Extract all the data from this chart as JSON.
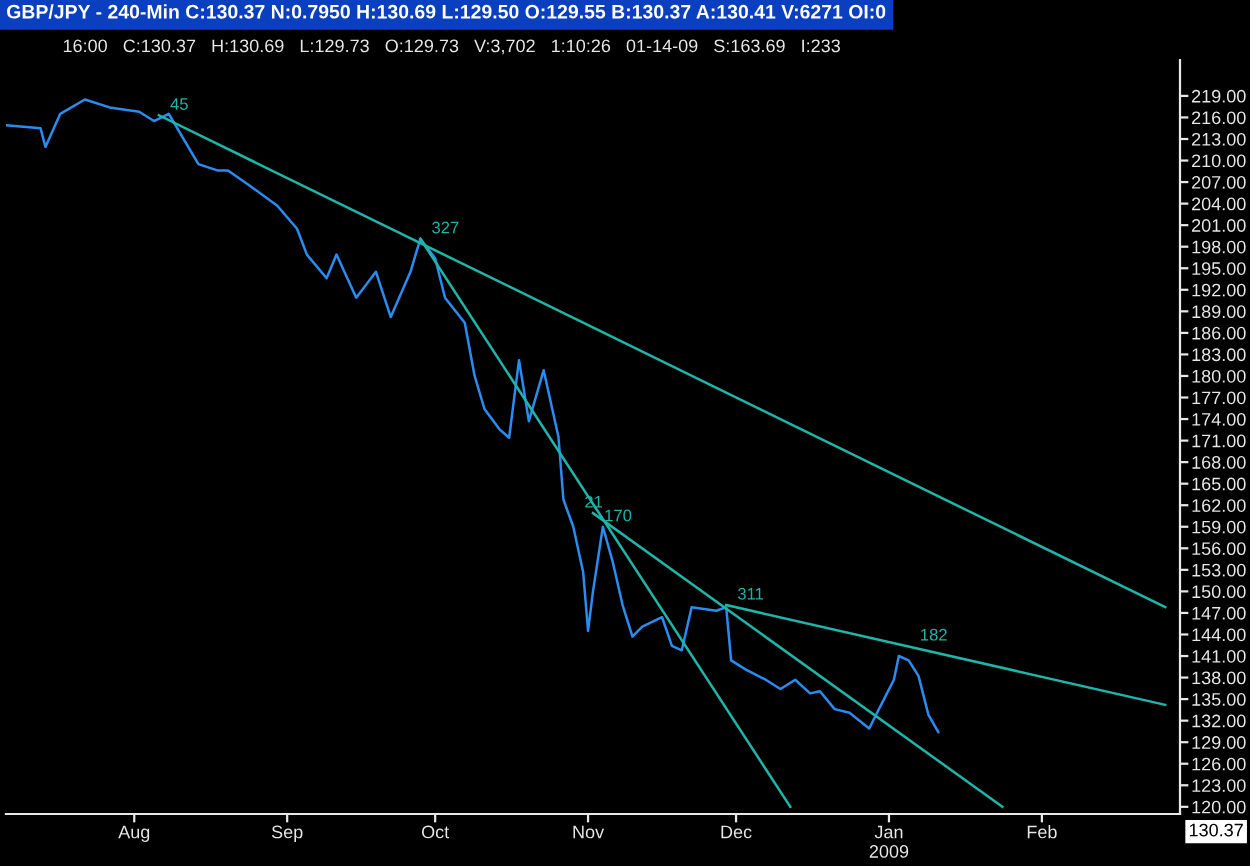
{
  "chart_data": {
    "type": "line",
    "title": "GBP/JPY - 240-Min C:130.37 N:0.7950 H:130.69 L:129.50 O:129.55 B:130.37 A:130.41 V:6271 OI:0",
    "subtitle": "16:00   C:130.37   H:130.69   L:129.73   O:129.73   V:3,702   1:10:26   01-14-09   S:163.69   I:233",
    "series": [
      {
        "color": "#2a8cf0",
        "x": [
          "2008-07-06",
          "2008-07-13",
          "2008-07-14",
          "2008-07-17",
          "2008-07-22",
          "2008-07-27",
          "2008-08-02",
          "2008-08-05",
          "2008-08-08",
          "2008-08-14",
          "2008-08-18",
          "2008-08-20",
          "2008-08-24",
          "2008-08-30",
          "2008-09-03",
          "2008-09-05",
          "2008-09-09",
          "2008-09-11",
          "2008-09-15",
          "2008-09-19",
          "2008-09-22",
          "2008-09-26",
          "2008-09-28",
          "2008-10-01",
          "2008-10-03",
          "2008-10-07",
          "2008-10-09",
          "2008-10-11",
          "2008-10-14",
          "2008-10-16",
          "2008-10-18",
          "2008-10-20",
          "2008-10-23",
          "2008-10-26",
          "2008-10-27",
          "2008-10-29",
          "2008-10-31",
          "2008-11-01",
          "2008-11-02",
          "2008-11-04",
          "2008-11-06",
          "2008-11-08",
          "2008-11-10",
          "2008-11-12",
          "2008-11-16",
          "2008-11-18",
          "2008-11-20",
          "2008-11-22",
          "2008-11-27",
          "2008-11-29",
          "2008-11-30",
          "2008-12-03",
          "2008-12-07",
          "2008-12-10",
          "2008-12-13",
          "2008-12-16",
          "2008-12-18",
          "2008-12-21",
          "2008-12-24",
          "2008-12-28",
          "2008-12-29",
          "2008-12-31",
          "2009-01-02",
          "2009-01-03",
          "2009-01-05",
          "2009-01-07",
          "2009-01-09",
          "2009-01-11"
        ],
        "values": [
          214.9,
          214.5,
          211.9,
          216.5,
          218.5,
          217.4,
          216.8,
          215.5,
          216.5,
          209.5,
          208.6,
          208.6,
          206.7,
          203.7,
          200.5,
          196.9,
          193.6,
          196.9,
          190.9,
          194.5,
          188.2,
          194.5,
          199.1,
          196.4,
          190.9,
          187.4,
          180.0,
          175.4,
          172.6,
          171.4,
          182.2,
          173.7,
          180.8,
          171.5,
          162.8,
          159.0,
          152.7,
          144.5,
          150.0,
          159.0,
          154.1,
          148.1,
          143.7,
          145.1,
          146.4,
          142.4,
          141.8,
          147.8,
          147.3,
          147.8,
          140.4,
          139.1,
          137.7,
          136.4,
          137.7,
          135.8,
          136.1,
          133.6,
          133.1,
          130.9,
          132.3,
          135.0,
          137.7,
          141.0,
          140.4,
          138.2,
          132.8,
          130.4
        ]
      },
      {
        "color": "#1fb5a8",
        "x": [
          "2008-08-06",
          "2009-02-26"
        ],
        "values": [
          216.3,
          147.8
        ]
      },
      {
        "color": "#1fb5a8",
        "x": [
          "2008-09-28",
          "2008-12-12"
        ],
        "values": [
          199.1,
          120
        ]
      },
      {
        "color": "#1fb5a8",
        "x": [
          "2008-11-02",
          "2009-01-24"
        ],
        "values": [
          160.9,
          120
        ]
      },
      {
        "color": "#1fb5a8",
        "x": [
          "2008-11-29",
          "2009-02-26"
        ],
        "values": [
          148.1,
          134.2
        ]
      }
    ],
    "annotations": [
      {
        "text": "45",
        "x": "2008-08-06",
        "y": 216.3
      },
      {
        "text": "327",
        "x": "2008-09-28",
        "y": 199.1
      },
      {
        "text": "21",
        "x": "2008-10-29",
        "y": 160.9
      },
      {
        "text": "170",
        "x": "2008-11-02",
        "y": 159.0
      },
      {
        "text": "311",
        "x": "2008-11-29",
        "y": 148.1
      },
      {
        "text": "182",
        "x": "2009-01-05",
        "y": 142.4
      },
      "130.37"
    ],
    "xlim": [
      "2008-07-06",
      "2009-03-01"
    ],
    "xticks": [
      {
        "value": "2008-08-01",
        "label": "Aug"
      },
      {
        "value": "2008-09-01",
        "label": "Sep"
      },
      {
        "value": "2008-10-01",
        "label": "Oct"
      },
      {
        "value": "2008-11-01",
        "label": "Nov"
      },
      {
        "value": "2008-12-01",
        "label": "Dec"
      },
      {
        "value": "2009-01-01",
        "label": "Jan\n2009"
      },
      {
        "value": "2009-02-01",
        "label": "Feb"
      }
    ],
    "ylim": [
      119,
      224
    ],
    "yticks": [
      {
        "value": 120,
        "label": "120.00"
      },
      {
        "value": 123,
        "label": "123.00"
      },
      {
        "value": 126,
        "label": "126.00"
      },
      {
        "value": 129,
        "label": "129.00"
      },
      {
        "value": 132,
        "label": "132.00"
      },
      {
        "value": 135,
        "label": "135.00"
      },
      {
        "value": 138,
        "label": "138.00"
      },
      {
        "value": 141,
        "label": "141.00"
      },
      {
        "value": 144,
        "label": "144.00"
      },
      {
        "value": 147,
        "label": "147.00"
      },
      {
        "value": 150,
        "label": "150.00"
      },
      {
        "value": 153,
        "label": "153.00"
      },
      {
        "value": 156,
        "label": "156.00"
      },
      {
        "value": 159,
        "label": "159.00"
      },
      {
        "value": 162,
        "label": "162.00"
      },
      {
        "value": 165,
        "label": "165.00"
      },
      {
        "value": 168,
        "label": "168.00"
      },
      {
        "value": 171,
        "label": "171.00"
      },
      {
        "value": 174,
        "label": "174.00"
      },
      {
        "value": 177,
        "label": "177.00"
      },
      {
        "value": 180,
        "label": "180.00"
      },
      {
        "value": 183,
        "label": "183.00"
      },
      {
        "value": 186,
        "label": "186.00"
      },
      {
        "value": 189,
        "label": "189.00"
      },
      {
        "value": 192,
        "label": "192.00"
      },
      {
        "value": 195,
        "label": "195.00"
      },
      {
        "value": 198,
        "label": "198.00"
      },
      {
        "value": 201,
        "label": "201.00"
      },
      {
        "value": 204,
        "label": "204.00"
      },
      {
        "value": 207,
        "label": "207.00"
      },
      {
        "value": 210,
        "label": "210.00"
      },
      {
        "value": 213,
        "label": "213.00"
      },
      {
        "value": 216,
        "label": "216.00"
      },
      {
        "value": 219,
        "label": "219.00"
      }
    ],
    "grid": false,
    "legend": false
  }
}
